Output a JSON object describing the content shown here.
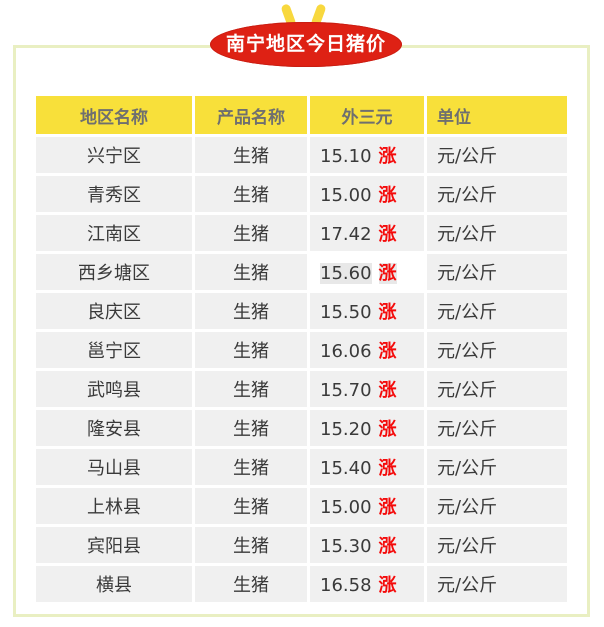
{
  "title": {
    "text": "南宁地区今日猪价"
  },
  "decor": {
    "ellipse_color": "#de2114",
    "ear_color": "#f8d83e",
    "frame_border_color": "#e9efc2",
    "header_bg": "#f8e03a",
    "header_text_color": "#6f6f6f",
    "row_bg": "#f0f0f0",
    "trend_color": "#f40b0b"
  },
  "table": {
    "header": {
      "region": "地区名称",
      "product": "产品名称",
      "price": "外三元",
      "unit": "单位"
    },
    "rows": [
      {
        "region": "兴宁区",
        "product": "生猪",
        "price": "15.10",
        "trend": "涨",
        "unit": "元/公斤",
        "highlight": false
      },
      {
        "region": "青秀区",
        "product": "生猪",
        "price": "15.00",
        "trend": "涨",
        "unit": "元/公斤",
        "highlight": false
      },
      {
        "region": "江南区",
        "product": "生猪",
        "price": "17.42",
        "trend": "涨",
        "unit": "元/公斤",
        "highlight": false
      },
      {
        "region": "西乡塘区",
        "product": "生猪",
        "price": "15.60",
        "trend": "涨",
        "unit": "元/公斤",
        "highlight": true
      },
      {
        "region": "良庆区",
        "product": "生猪",
        "price": "15.50",
        "trend": "涨",
        "unit": "元/公斤",
        "highlight": false
      },
      {
        "region": "邕宁区",
        "product": "生猪",
        "price": "16.06",
        "trend": "涨",
        "unit": "元/公斤",
        "highlight": false
      },
      {
        "region": "武鸣县",
        "product": "生猪",
        "price": "15.70",
        "trend": "涨",
        "unit": "元/公斤",
        "highlight": false
      },
      {
        "region": "隆安县",
        "product": "生猪",
        "price": "15.20",
        "trend": "涨",
        "unit": "元/公斤",
        "highlight": false
      },
      {
        "region": "马山县",
        "product": "生猪",
        "price": "15.40",
        "trend": "涨",
        "unit": "元/公斤",
        "highlight": false
      },
      {
        "region": "上林县",
        "product": "生猪",
        "price": "15.00",
        "trend": "涨",
        "unit": "元/公斤",
        "highlight": false
      },
      {
        "region": "宾阳县",
        "product": "生猪",
        "price": "15.30",
        "trend": "涨",
        "unit": "元/公斤",
        "highlight": false
      },
      {
        "region": "横县",
        "product": "生猪",
        "price": "16.58",
        "trend": "涨",
        "unit": "元/公斤",
        "highlight": false
      }
    ]
  },
  "chart_data": {
    "type": "table",
    "title": "南宁地区今日猪价",
    "columns": [
      "地区名称",
      "产品名称",
      "外三元",
      "单位"
    ],
    "product_all": "生猪",
    "trend_all": "涨",
    "unit_all": "元/公斤",
    "regions": [
      "兴宁区",
      "青秀区",
      "江南区",
      "西乡塘区",
      "良庆区",
      "邕宁区",
      "武鸣县",
      "隆安县",
      "马山县",
      "上林县",
      "宾阳县",
      "横县"
    ],
    "prices": [
      15.1,
      15.0,
      17.42,
      15.6,
      15.5,
      16.06,
      15.7,
      15.2,
      15.4,
      15.0,
      15.3,
      16.58
    ]
  }
}
